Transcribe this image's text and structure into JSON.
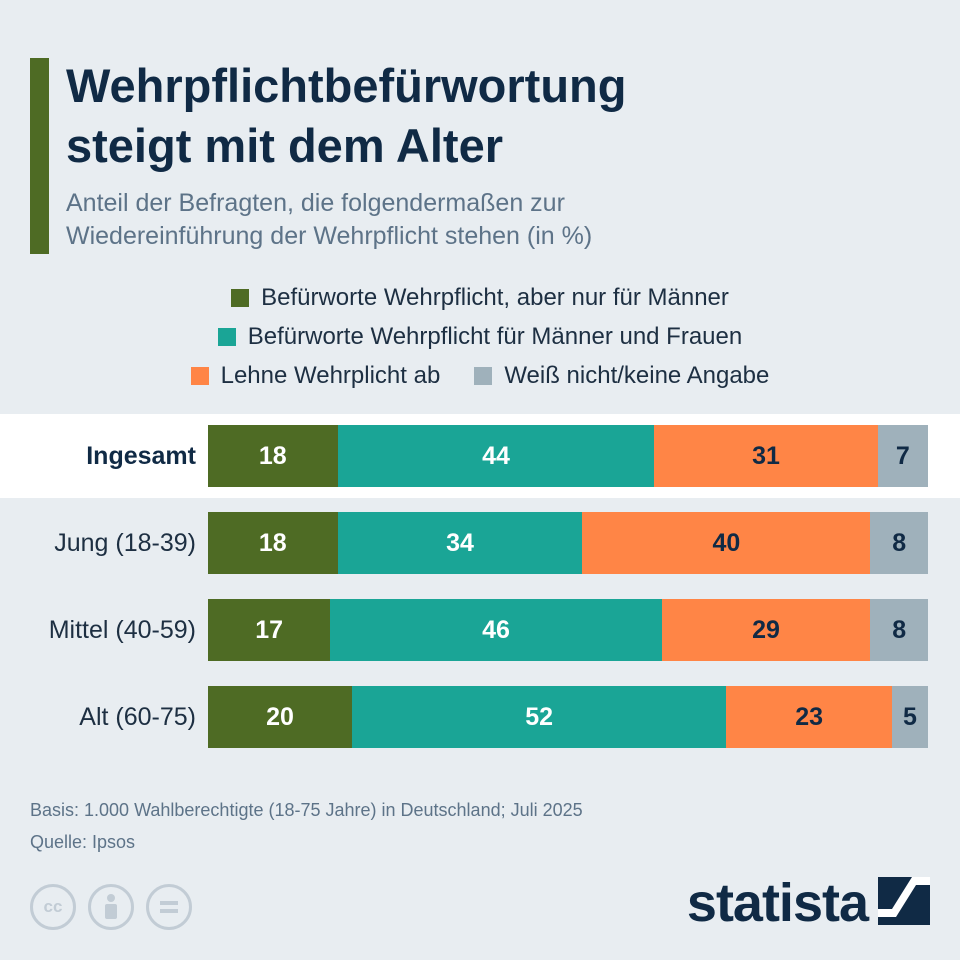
{
  "header": {
    "title_lines": [
      "Wehrpflichtbefürwortung",
      "steigt mit dem Alter"
    ],
    "subtitle_lines": [
      "Anteil der Befragten, die folgendermaßen zur",
      "Wiedereinführung der Wehrpflicht stehen (in %)"
    ]
  },
  "colors": {
    "accent": "#4e6b24",
    "men_only": "#4e6b24",
    "men_and_women": "#1aa596",
    "reject": "#ff8546",
    "unknown": "#9fb1bb",
    "highlight": "#ffffff",
    "label_light": "#ffffff",
    "label_dark": "#102a45"
  },
  "legend": [
    {
      "label": "Befürworte Wehrpflicht, aber nur für Männer",
      "color": "#4e6b24"
    },
    {
      "label": "Befürworte Wehrpflicht für Männer und Frauen",
      "color": "#1aa596"
    },
    {
      "label": "Lehne Wehrplicht ab",
      "color": "#ff8546"
    },
    {
      "label": "Weiß nicht/keine Angabe",
      "color": "#9fb1bb"
    }
  ],
  "chart_data": {
    "type": "bar",
    "orientation": "horizontal",
    "stacked": true,
    "categories": [
      "Ingesamt",
      "Jung (18-39)",
      "Mittel (40-59)",
      "Alt (60-75)"
    ],
    "highlighted_category": "Ingesamt",
    "unit": "%",
    "series": [
      {
        "name": "Befürworte Wehrpflicht, aber nur für Männer",
        "values": [
          18,
          18,
          17,
          20
        ]
      },
      {
        "name": "Befürworte Wehrpflicht für Männer und Frauen",
        "values": [
          44,
          34,
          46,
          52
        ]
      },
      {
        "name": "Lehne Wehrplicht ab",
        "values": [
          31,
          40,
          29,
          23
        ]
      },
      {
        "name": "Weiß nicht/keine Angabe",
        "values": [
          7,
          8,
          8,
          5
        ]
      }
    ],
    "xlim": [
      0,
      100
    ],
    "grid": false,
    "legend_position": "top"
  },
  "footer": {
    "basis": "Basis: 1.000 Wahlberechtigte (18-75 Jahre) in Deutschland; Juli 2025",
    "source": "Quelle: Ipsos"
  },
  "icons": [
    "cc-icon",
    "attribution-icon",
    "no-derivatives-icon",
    "statista-logo-icon"
  ],
  "brand": {
    "name": "statista"
  }
}
